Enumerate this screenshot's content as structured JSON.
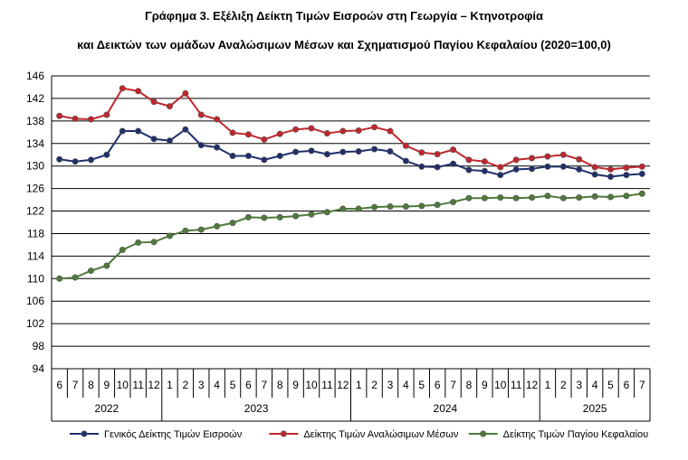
{
  "chart_data": {
    "type": "line",
    "title": "Γράφημα 3. Εξέλιξη Δείκτη Τιμών Εισροών στη Γεωργία – Κτηνοτροφία",
    "subtitle": "και Δεικτών των ομάδων Αναλώσιμων Μέσων και Σχηματισμού Παγίου Κεφαλαίου (2020=100,0)",
    "xlabel": "",
    "ylabel": "",
    "ylim": [
      94,
      146
    ],
    "yticks": [
      94,
      98,
      102,
      106,
      110,
      114,
      118,
      122,
      126,
      130,
      134,
      138,
      142,
      146
    ],
    "grid": true,
    "legend_position": "bottom",
    "months": [
      "6",
      "7",
      "8",
      "9",
      "10",
      "11",
      "12",
      "1",
      "2",
      "3",
      "4",
      "5",
      "6",
      "7",
      "8",
      "9",
      "10",
      "11",
      "12",
      "1",
      "2",
      "3",
      "4",
      "5",
      "6",
      "7",
      "8",
      "9",
      "10",
      "11",
      "12",
      "1",
      "2",
      "3",
      "4",
      "5",
      "6",
      "7"
    ],
    "years": [
      {
        "label": "2022",
        "count": 7
      },
      {
        "label": "2023",
        "count": 12
      },
      {
        "label": "2024",
        "count": 12
      },
      {
        "label": "2025",
        "count": 7
      }
    ],
    "series": [
      {
        "name": "Γενικός Δείκτης Τιμών Εισροών",
        "color": "#1f2f6b",
        "values": [
          131.2,
          130.8,
          131.1,
          132.0,
          136.2,
          136.2,
          134.8,
          134.5,
          136.5,
          133.7,
          133.3,
          131.8,
          131.8,
          131.1,
          131.8,
          132.5,
          132.7,
          132.1,
          132.5,
          132.6,
          133.0,
          132.6,
          130.9,
          129.9,
          129.8,
          130.4,
          129.3,
          129.1,
          128.4,
          129.4,
          129.5,
          129.9,
          129.9,
          129.4,
          128.5,
          128.1,
          128.4,
          128.6
        ]
      },
      {
        "name": "Δείκτης Τιμών Αναλώσιμων Μέσων",
        "color": "#c0272d",
        "values": [
          138.9,
          138.4,
          138.3,
          139.1,
          143.8,
          143.3,
          141.4,
          140.6,
          142.9,
          139.1,
          138.3,
          135.9,
          135.6,
          134.7,
          135.7,
          136.5,
          136.7,
          135.8,
          136.2,
          136.3,
          136.9,
          136.2,
          133.6,
          132.4,
          132.1,
          132.9,
          131.1,
          130.8,
          129.8,
          131.1,
          131.4,
          131.7,
          132.0,
          131.2,
          129.8,
          129.4,
          129.7,
          129.9
        ]
      },
      {
        "name": "Δείκτης Τιμών Παγίου Κεφαλαίου",
        "color": "#4f7a3b",
        "values": [
          110.0,
          110.2,
          111.4,
          112.3,
          115.1,
          116.4,
          116.5,
          117.6,
          118.5,
          118.7,
          119.3,
          119.9,
          120.9,
          120.8,
          120.9,
          121.1,
          121.4,
          121.8,
          122.4,
          122.4,
          122.7,
          122.8,
          122.8,
          122.9,
          123.1,
          123.6,
          124.3,
          124.3,
          124.4,
          124.3,
          124.4,
          124.7,
          124.3,
          124.4,
          124.6,
          124.5,
          124.7,
          125.1
        ]
      }
    ]
  }
}
